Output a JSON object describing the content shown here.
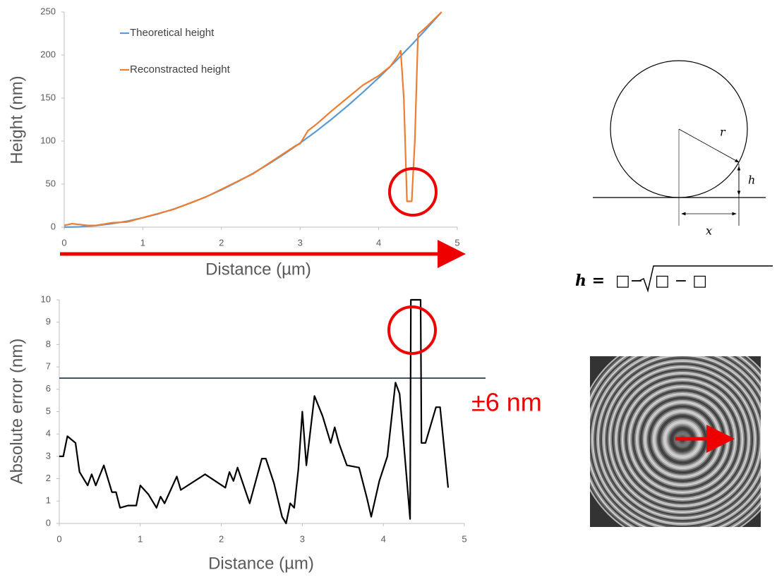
{
  "chart_data": [
    {
      "type": "line",
      "xlabel": "Distance (µm)",
      "ylabel": "Height (nm)",
      "xlim": [
        0,
        5
      ],
      "xticks": [
        0,
        1,
        2,
        3,
        4,
        5
      ],
      "ylim": [
        0,
        250
      ],
      "yticks": [
        0,
        50,
        100,
        150,
        200,
        250
      ],
      "series": [
        {
          "name": "Theoretical height",
          "color": "#5b9bd5",
          "x": [
            0,
            0.2,
            0.4,
            0.6,
            0.8,
            1,
            1.2,
            1.4,
            1.6,
            1.8,
            2,
            2.2,
            2.4,
            2.6,
            2.8,
            3,
            3.2,
            3.4,
            3.6,
            3.8,
            4,
            4.2,
            4.4,
            4.6,
            4.8
          ],
          "values": [
            0,
            0.4,
            1.7,
            3.9,
            6.9,
            10.9,
            15.6,
            21.3,
            27.8,
            35.2,
            43.4,
            52.5,
            62.5,
            73.3,
            85.1,
            97.7,
            111.1,
            125.4,
            140.6,
            156.7,
            173.6,
            191.4,
            210.1,
            229.6,
            250
          ]
        },
        {
          "name": "Reconstracted height",
          "color": "#ed7d31",
          "x": [
            0,
            0.1,
            0.2,
            0.3,
            0.4,
            0.6,
            0.8,
            1,
            1.2,
            1.4,
            1.6,
            1.8,
            2,
            2.2,
            2.4,
            2.6,
            2.8,
            2.95,
            3.0,
            3.1,
            3.2,
            3.4,
            3.6,
            3.8,
            4.0,
            4.15,
            4.25,
            4.28,
            4.32,
            4.36,
            4.42,
            4.46,
            4.5,
            4.6,
            4.8
          ],
          "values": [
            2,
            4,
            3,
            2,
            2,
            5,
            6,
            11,
            16,
            21,
            28,
            35,
            44,
            53,
            62,
            74,
            86,
            95,
            97,
            112,
            119,
            135,
            150,
            165,
            176,
            187,
            200,
            205,
            150,
            30,
            30,
            100,
            224,
            232,
            250
          ]
        }
      ]
    },
    {
      "type": "line",
      "xlabel": "Distance (µm)",
      "ylabel": "Absolute error (nm)",
      "xlim": [
        0,
        5
      ],
      "xticks": [
        0,
        1,
        2,
        3,
        4,
        5
      ],
      "ylim": [
        0,
        10
      ],
      "yticks": [
        0,
        1,
        2,
        3,
        4,
        5,
        6,
        7,
        8,
        9,
        10
      ],
      "threshold": 6.5,
      "threshold_color": "#44546a",
      "series": [
        {
          "color": "#000000",
          "x": [
            0,
            0.05,
            0.1,
            0.2,
            0.25,
            0.35,
            0.4,
            0.45,
            0.55,
            0.65,
            0.7,
            0.75,
            0.85,
            0.95,
            1.0,
            1.1,
            1.2,
            1.25,
            1.3,
            1.45,
            1.5,
            1.8,
            2.05,
            2.1,
            2.15,
            2.2,
            2.35,
            2.5,
            2.55,
            2.65,
            2.75,
            2.8,
            2.85,
            2.9,
            2.95,
            3.0,
            3.05,
            3.15,
            3.25,
            3.35,
            3.4,
            3.45,
            3.55,
            3.7,
            3.8,
            3.85,
            3.95,
            4.05,
            4.15,
            4.2,
            4.33,
            4.34,
            4.46,
            4.47,
            4.52,
            4.65,
            4.7,
            4.8
          ],
          "values": [
            3,
            3,
            3.9,
            3.6,
            2.3,
            1.7,
            2.2,
            1.7,
            2.6,
            1.4,
            1.4,
            0.7,
            0.8,
            0.8,
            1.7,
            1.3,
            0.7,
            1.2,
            0.9,
            2.1,
            1.5,
            2.2,
            1.6,
            2.3,
            1.9,
            2.5,
            0.9,
            2.9,
            2.9,
            1.8,
            0.3,
            0,
            0.9,
            0.7,
            2.4,
            5.0,
            2.6,
            5.7,
            4.8,
            3.6,
            4.3,
            3.6,
            2.6,
            2.5,
            1.1,
            0.3,
            1.9,
            3.0,
            6.3,
            5.8,
            0.2,
            10,
            10,
            3.6,
            3.6,
            5.2,
            5.2,
            1.6
          ]
        }
      ]
    }
  ],
  "annotation": "±6 nm",
  "diagram": {
    "r": "r",
    "h": "h",
    "x": "x"
  },
  "formula": {
    "lhs": "h =",
    "a": "□−",
    "b": "□ − □"
  }
}
